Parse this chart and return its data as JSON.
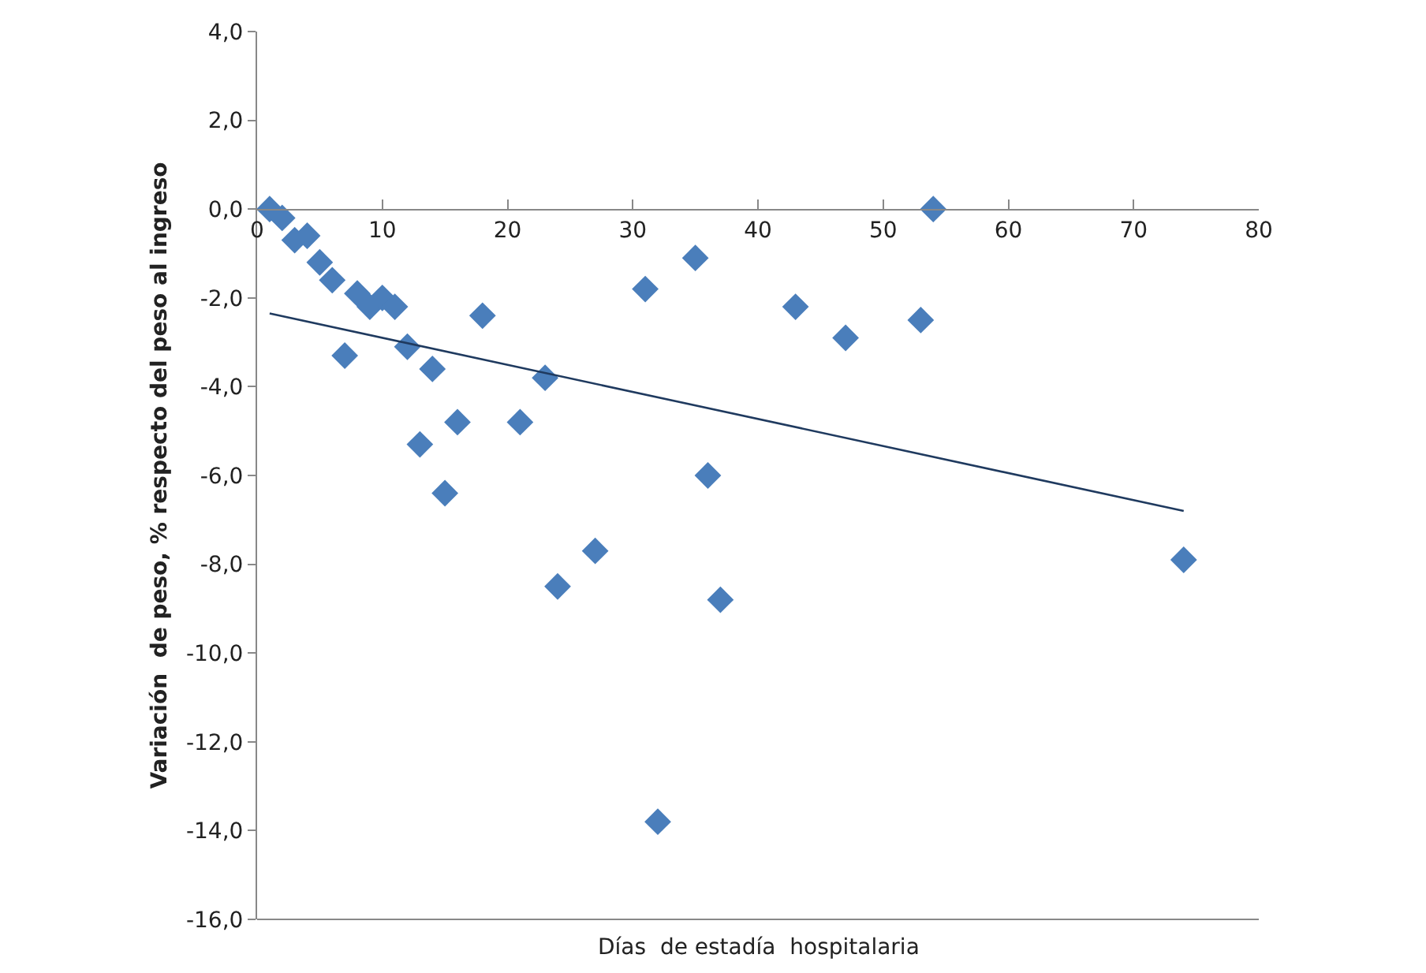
{
  "chart_data": {
    "type": "scatter",
    "xlabel": "Días  de estadía  hospitalaria",
    "ylabel": "Variación  de peso, % respecto del peso al ingreso",
    "x": [
      1,
      2,
      3,
      4,
      5,
      6,
      7,
      8,
      9,
      10,
      11,
      12,
      13,
      14,
      15,
      16,
      18,
      21,
      23,
      24,
      27,
      31,
      32,
      35,
      36,
      37,
      43,
      47,
      53,
      54,
      74
    ],
    "series": [
      {
        "color": "#4a7ebb",
        "values": [
          0.0,
          -0.2,
          -0.7,
          -0.6,
          -1.2,
          -1.6,
          -3.3,
          -1.9,
          -2.2,
          -2.0,
          -2.2,
          -3.1,
          -5.3,
          -3.6,
          -6.4,
          -4.8,
          -2.4,
          -4.8,
          -3.8,
          -8.5,
          -7.7,
          -1.8,
          -13.8,
          -1.1,
          -6.0,
          -8.8,
          -2.2,
          -2.9,
          -2.5,
          0.0,
          -7.9
        ]
      },
      {
        "type": "line",
        "color": "#1f3a5f",
        "x": [
          1,
          74
        ],
        "values": [
          -2.35,
          -6.8
        ],
        "marker": "none",
        "line_style": "solid"
      }
    ],
    "xlim": [
      0,
      80
    ],
    "xticks": [
      0,
      10,
      20,
      30,
      40,
      50,
      60,
      70,
      80
    ],
    "ylim": [
      -16,
      4
    ],
    "yticks": [
      {
        "value": 4,
        "label": "4,0"
      },
      {
        "value": 2,
        "label": "2,0"
      },
      {
        "value": 0,
        "label": "0,0"
      },
      {
        "value": -2,
        "label": "-2,0"
      },
      {
        "value": -4,
        "label": "-4,0"
      },
      {
        "value": -6,
        "label": "-6,0"
      },
      {
        "value": -8,
        "label": "-8,0"
      },
      {
        "value": -10,
        "label": "-10,0"
      },
      {
        "value": -12,
        "label": "-12,0"
      },
      {
        "value": -14,
        "label": "-14,0"
      },
      {
        "value": -16,
        "label": "-16,0"
      }
    ],
    "marker": "diamond"
  }
}
